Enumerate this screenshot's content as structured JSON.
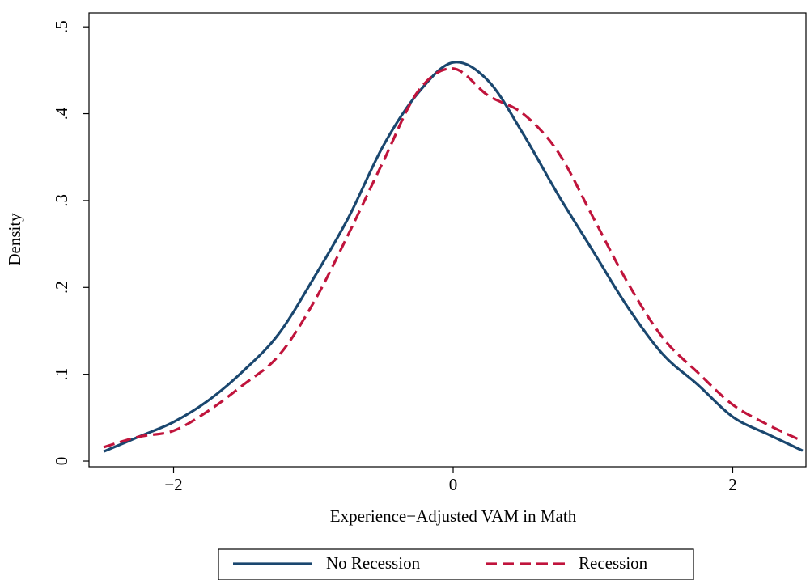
{
  "chart_data": {
    "type": "line",
    "x_label": "Experience−Adjusted VAM in Math",
    "y_label": "Density",
    "x": [
      -2.5,
      -2.25,
      -2.0,
      -1.75,
      -1.5,
      -1.25,
      -1.0,
      -0.75,
      -0.5,
      -0.25,
      0,
      0.25,
      0.5,
      0.75,
      1.0,
      1.25,
      1.5,
      1.75,
      2.0,
      2.25,
      2.5
    ],
    "series": [
      {
        "name": "No Recession",
        "color": "#1a476f",
        "dash": false,
        "values": [
          0.011,
          0.028,
          0.045,
          0.07,
          0.104,
          0.146,
          0.21,
          0.28,
          0.363,
          0.424,
          0.459,
          0.438,
          0.377,
          0.307,
          0.242,
          0.177,
          0.123,
          0.088,
          0.051,
          0.031,
          0.012
        ]
      },
      {
        "name": "Recession",
        "color": "#c0143c",
        "dash": true,
        "values": [
          0.016,
          0.028,
          0.035,
          0.058,
          0.088,
          0.121,
          0.182,
          0.261,
          0.345,
          0.426,
          0.452,
          0.421,
          0.4,
          0.356,
          0.281,
          0.205,
          0.142,
          0.102,
          0.065,
          0.042,
          0.023
        ]
      }
    ],
    "xlim": [
      -2.605,
      2.524
    ],
    "ylim": [
      -0.0065,
      0.516
    ],
    "xticks": [
      {
        "value": -2,
        "label": "−2"
      },
      0,
      2
    ],
    "yticks": [
      0,
      {
        "value": 0.1,
        "label": ".1"
      },
      {
        "value": 0.2,
        "label": ".2"
      },
      {
        "value": 0.3,
        "label": ".3"
      },
      {
        "value": 0.4,
        "label": ".4"
      },
      {
        "value": 0.5,
        "label": ".5"
      }
    ],
    "grid": false,
    "legend": "bottom"
  }
}
